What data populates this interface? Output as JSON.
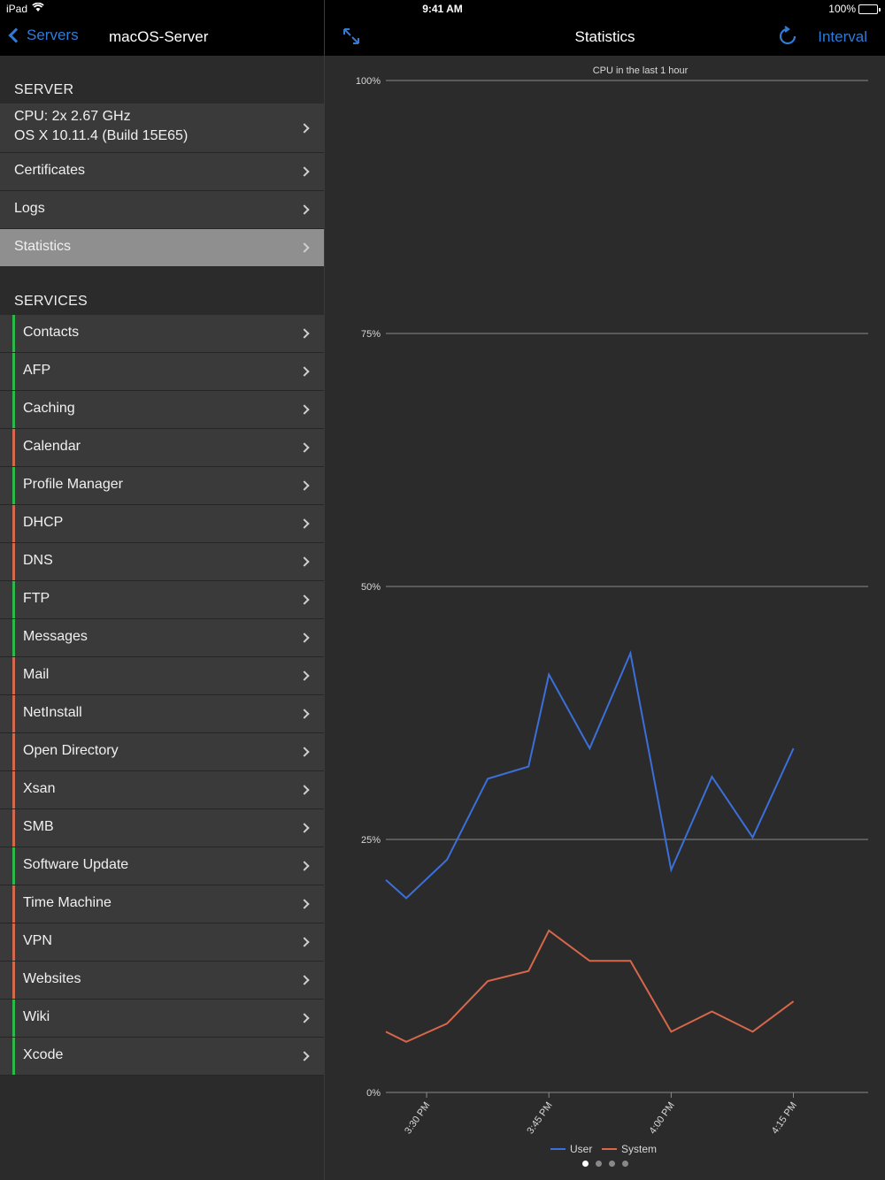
{
  "status_bar": {
    "carrier": "iPad",
    "time": "9:41 AM",
    "battery": "100%"
  },
  "left_nav": {
    "back_label": "Servers",
    "title": "macOS-Server"
  },
  "right_nav": {
    "title": "Statistics",
    "interval_label": "Interval"
  },
  "server_section": {
    "header": "SERVER",
    "info_line1": "CPU: 2x 2.67 GHz",
    "info_line2": "OS X 10.11.4 (Build 15E65)",
    "items": [
      "Certificates",
      "Logs",
      "Statistics"
    ],
    "selected": "Statistics"
  },
  "services_section": {
    "header": "SERVICES",
    "items": [
      {
        "label": "Contacts",
        "status": "running"
      },
      {
        "label": "AFP",
        "status": "running"
      },
      {
        "label": "Caching",
        "status": "running"
      },
      {
        "label": "Calendar",
        "status": "stopped"
      },
      {
        "label": "Profile Manager",
        "status": "running"
      },
      {
        "label": "DHCP",
        "status": "stopped"
      },
      {
        "label": "DNS",
        "status": "stopped"
      },
      {
        "label": "FTP",
        "status": "running"
      },
      {
        "label": "Messages",
        "status": "running"
      },
      {
        "label": "Mail",
        "status": "stopped"
      },
      {
        "label": "NetInstall",
        "status": "stopped"
      },
      {
        "label": "Open Directory",
        "status": "stopped"
      },
      {
        "label": "Xsan",
        "status": "stopped"
      },
      {
        "label": "SMB",
        "status": "stopped"
      },
      {
        "label": "Software Update",
        "status": "running"
      },
      {
        "label": "Time Machine",
        "status": "stopped"
      },
      {
        "label": "VPN",
        "status": "stopped"
      },
      {
        "label": "Websites",
        "status": "stopped"
      },
      {
        "label": "Wiki",
        "status": "running"
      },
      {
        "label": "Xcode",
        "status": "running"
      }
    ],
    "status_colors": {
      "running": "#2db84a",
      "stopped": "#d2694f"
    }
  },
  "colors": {
    "accent": "#2f7bd6",
    "user_series": "#3b6fd9",
    "system_series": "#d7674b"
  },
  "page_indicator": {
    "count": 4,
    "current": 0
  },
  "chart_data": {
    "type": "line",
    "title": "CPU in the last 1 hour",
    "ylim": [
      0,
      100
    ],
    "yticks": [
      "0%",
      "25%",
      "50%",
      "75%",
      "100%"
    ],
    "ytick_values": [
      0,
      25,
      50,
      75,
      100
    ],
    "xtick_labels": [
      "3:30 PM",
      "3:45 PM",
      "4:00 PM",
      "4:15 PM"
    ],
    "xtick_positions": [
      3,
      12,
      21,
      30
    ],
    "x": [
      0,
      1.5,
      4.5,
      7.5,
      10.5,
      12,
      15,
      18,
      21,
      24,
      27,
      30
    ],
    "xlim": [
      0,
      35.5
    ],
    "grid": true,
    "legend_position": "bottom-center",
    "series": [
      {
        "name": "User",
        "values": [
          21,
          19.2,
          23,
          31,
          32.2,
          41.3,
          34,
          43.4,
          22,
          31.2,
          25.2,
          34
        ]
      },
      {
        "name": "System",
        "values": [
          6,
          5,
          6.8,
          11,
          12,
          16,
          13,
          13,
          6,
          8,
          6,
          9
        ]
      }
    ]
  }
}
